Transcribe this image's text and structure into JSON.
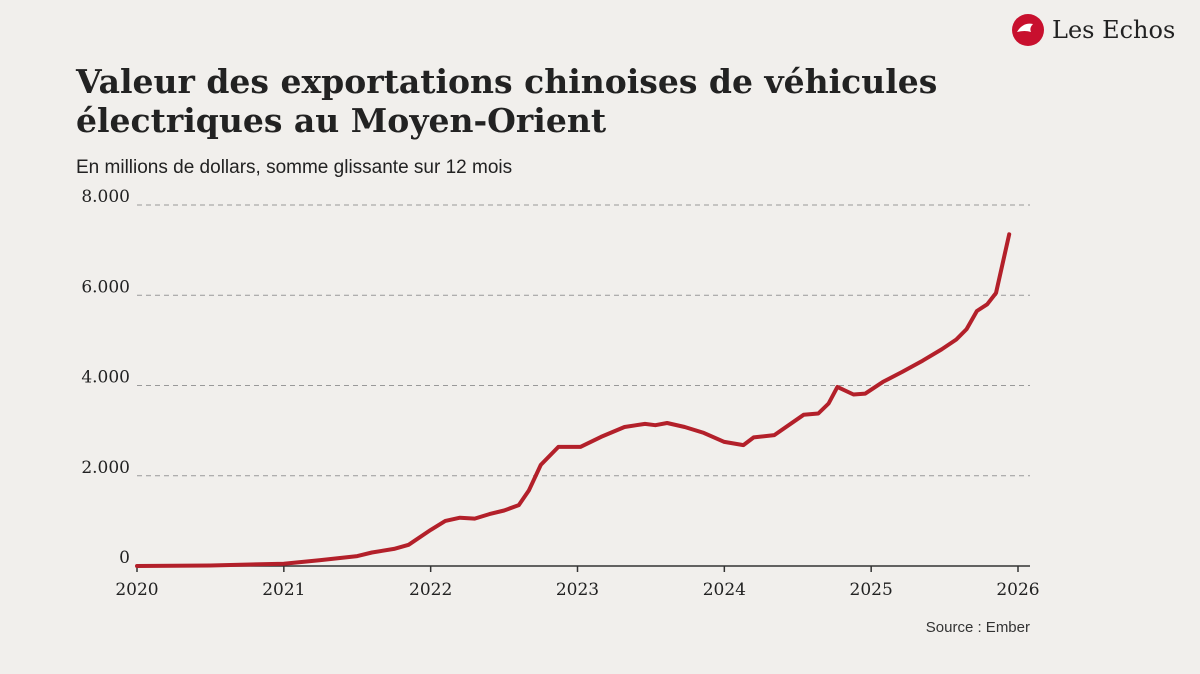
{
  "chart_data": {
    "type": "line",
    "brand": "Les Echos",
    "title": [
      "Valeur des exportations chinoises de véhicules",
      "électriques au Moyen-Orient"
    ],
    "subtitle": "En millions de dollars, somme glissante sur 12 mois",
    "source": "Source : Ember",
    "grid": true,
    "xlim": [
      2020,
      2026
    ],
    "xticks": [
      2020,
      2021,
      2022,
      2023,
      2024,
      2025,
      2026
    ],
    "ylim": [
      0,
      8000
    ],
    "yticks": [
      0,
      {
        "value": 2000,
        "label": "2.000"
      },
      {
        "value": 4000,
        "label": "4.000"
      },
      {
        "value": 6000,
        "label": "6.000"
      },
      {
        "value": 8000,
        "label": "8.000"
      }
    ],
    "x": [
      2020.0,
      2020.5,
      2021.0,
      2021.25,
      2021.5,
      2021.6,
      2021.75,
      2021.85,
      2022.0,
      2022.1,
      2022.2,
      2022.3,
      2022.4,
      2022.5,
      2022.6,
      2022.67,
      2022.75,
      2022.87,
      2023.02,
      2023.16,
      2023.32,
      2023.46,
      2023.53,
      2023.61,
      2023.73,
      2023.86,
      2024.0,
      2024.13,
      2024.2,
      2024.34,
      2024.54,
      2024.64,
      2024.71,
      2024.77,
      2024.88,
      2024.96,
      2025.08,
      2025.21,
      2025.35,
      2025.48,
      2025.58,
      2025.65,
      2025.72,
      2025.79,
      2025.85,
      2025.94
    ],
    "series": [
      {
        "color": "#b3202a",
        "values": [
          0,
          10,
          50,
          130,
          220,
          300,
          380,
          470,
          800,
          1000,
          1070,
          1050,
          1150,
          1230,
          1350,
          1680,
          2240,
          2640,
          2640,
          2860,
          3080,
          3150,
          3120,
          3170,
          3080,
          2950,
          2750,
          2680,
          2850,
          2900,
          3350,
          3380,
          3600,
          3970,
          3800,
          3820,
          4080,
          4300,
          4550,
          4800,
          5020,
          5250,
          5650,
          5800,
          6050,
          7350
        ]
      }
    ]
  }
}
